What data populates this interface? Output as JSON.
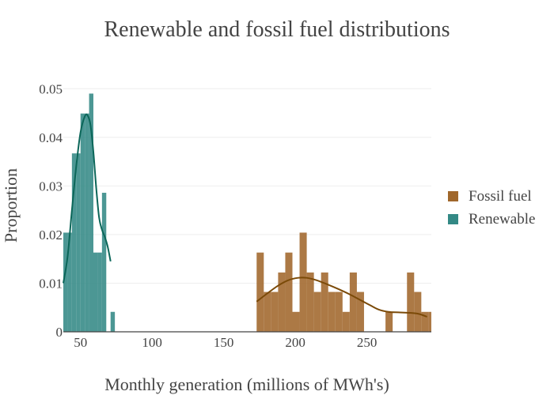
{
  "chart_data": {
    "type": "histogram",
    "title": "Renewable and fossil fuel distributions",
    "xlabel": "Monthly generation (millions of MWh's)",
    "ylabel": "Proportion",
    "xlim": [
      38,
      295
    ],
    "ylim": [
      0,
      0.052
    ],
    "xticks": [
      50,
      100,
      150,
      200,
      250
    ],
    "yticks": [
      0,
      0.01,
      0.02,
      0.03,
      0.04,
      0.05
    ],
    "ytick_labels": [
      "0",
      "0.01",
      "0.02",
      "0.03",
      "0.04",
      "0.05"
    ],
    "grid": true,
    "legend_position": "right",
    "bin_width": 5,
    "series": [
      {
        "name": "Fossil fuel",
        "color": "#a0672b",
        "kde_color": "#7b4a08",
        "bins": [
          {
            "x0": 173,
            "x1": 178,
            "y": 0.0163
          },
          {
            "x0": 178,
            "x1": 183,
            "y": 0.0082
          },
          {
            "x0": 183,
            "x1": 188,
            "y": 0.0082
          },
          {
            "x0": 188,
            "x1": 193,
            "y": 0.0122
          },
          {
            "x0": 193,
            "x1": 198,
            "y": 0.0163
          },
          {
            "x0": 198,
            "x1": 203,
            "y": 0.0041
          },
          {
            "x0": 203,
            "x1": 208,
            "y": 0.0204
          },
          {
            "x0": 208,
            "x1": 213,
            "y": 0.0122
          },
          {
            "x0": 213,
            "x1": 218,
            "y": 0.0082
          },
          {
            "x0": 218,
            "x1": 223,
            "y": 0.0122
          },
          {
            "x0": 223,
            "x1": 228,
            "y": 0.0082
          },
          {
            "x0": 228,
            "x1": 233,
            "y": 0.0082
          },
          {
            "x0": 233,
            "x1": 238,
            "y": 0.0041
          },
          {
            "x0": 238,
            "x1": 243,
            "y": 0.0122
          },
          {
            "x0": 243,
            "x1": 248,
            "y": 0.0082
          },
          {
            "x0": 248,
            "x1": 253,
            "y": 0.0
          },
          {
            "x0": 253,
            "x1": 258,
            "y": 0.0
          },
          {
            "x0": 258,
            "x1": 263,
            "y": 0.0
          },
          {
            "x0": 263,
            "x1": 268,
            "y": 0.0041
          },
          {
            "x0": 268,
            "x1": 273,
            "y": 0.0
          },
          {
            "x0": 273,
            "x1": 278,
            "y": 0.0
          },
          {
            "x0": 278,
            "x1": 283,
            "y": 0.0122
          },
          {
            "x0": 283,
            "x1": 288,
            "y": 0.0082
          },
          {
            "x0": 288,
            "x1": 293,
            "y": 0.0041
          },
          {
            "x0": 293,
            "x1": 295,
            "y": 0.0041
          }
        ],
        "kde": [
          [
            173,
            0.0062
          ],
          [
            180,
            0.0078
          ],
          [
            188,
            0.0095
          ],
          [
            195,
            0.0106
          ],
          [
            202,
            0.0111
          ],
          [
            208,
            0.0111
          ],
          [
            215,
            0.0106
          ],
          [
            222,
            0.0098
          ],
          [
            230,
            0.0088
          ],
          [
            238,
            0.0077
          ],
          [
            245,
            0.0066
          ],
          [
            252,
            0.0055
          ],
          [
            258,
            0.0046
          ],
          [
            265,
            0.0041
          ],
          [
            272,
            0.004
          ],
          [
            280,
            0.0039
          ],
          [
            286,
            0.0037
          ],
          [
            292,
            0.0031
          ]
        ]
      },
      {
        "name": "Renewable",
        "color": "#338985",
        "kde_color": "#0b6659",
        "bins": [
          {
            "x0": 38,
            "x1": 41,
            "y": 0.0204
          },
          {
            "x0": 41,
            "x1": 44,
            "y": 0.0204
          },
          {
            "x0": 44,
            "x1": 47,
            "y": 0.0367
          },
          {
            "x0": 47,
            "x1": 50,
            "y": 0.0367
          },
          {
            "x0": 50,
            "x1": 53,
            "y": 0.0449
          },
          {
            "x0": 53,
            "x1": 56,
            "y": 0.0449
          },
          {
            "x0": 56,
            "x1": 59,
            "y": 0.049
          },
          {
            "x0": 59,
            "x1": 62,
            "y": 0.0163
          },
          {
            "x0": 62,
            "x1": 65,
            "y": 0.0163
          },
          {
            "x0": 65,
            "x1": 68,
            "y": 0.0286
          },
          {
            "x0": 68,
            "x1": 71,
            "y": 0.0
          },
          {
            "x0": 71,
            "x1": 74,
            "y": 0.0041
          }
        ],
        "kde": [
          [
            38,
            0.01
          ],
          [
            41,
            0.0155
          ],
          [
            44,
            0.025
          ],
          [
            47,
            0.034
          ],
          [
            50,
            0.041
          ],
          [
            53,
            0.0443
          ],
          [
            55,
            0.0445
          ],
          [
            57,
            0.0425
          ],
          [
            59,
            0.037
          ],
          [
            61,
            0.0295
          ],
          [
            63,
            0.0235
          ],
          [
            65,
            0.021
          ],
          [
            67,
            0.0195
          ],
          [
            69,
            0.0175
          ],
          [
            71,
            0.0145
          ]
        ]
      }
    ]
  }
}
